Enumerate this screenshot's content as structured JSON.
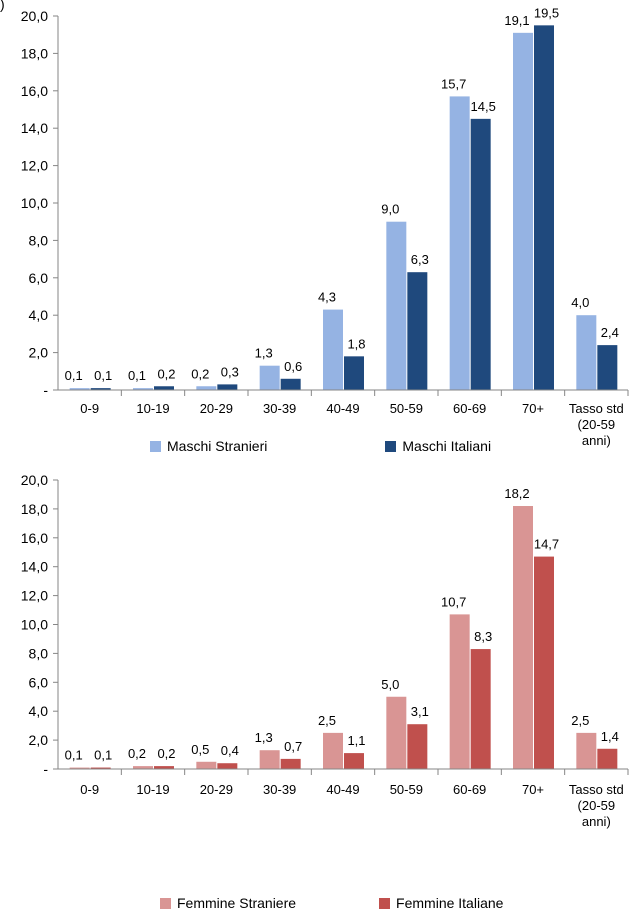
{
  "corner_mark": ")",
  "chart_data": [
    {
      "type": "bar",
      "categories": [
        "0-9",
        "10-19",
        "20-29",
        "30-39",
        "40-49",
        "50-59",
        "60-69",
        "70+",
        "Tasso std\n(20-59\nanni)"
      ],
      "series": [
        {
          "name": "Maschi Stranieri",
          "color": "#95b3e3",
          "values": [
            0.1,
            0.1,
            0.2,
            1.3,
            4.3,
            9.0,
            15.7,
            19.1,
            4.0
          ],
          "labels": [
            "0,1",
            "0,1",
            "0,2",
            "1,3",
            "4,3",
            "9,0",
            "15,7",
            "19,1",
            "4,0"
          ]
        },
        {
          "name": "Maschi Italiani",
          "color": "#1f497d",
          "values": [
            0.1,
            0.2,
            0.3,
            0.6,
            1.8,
            6.3,
            14.5,
            19.5,
            2.4
          ],
          "labels": [
            "0,1",
            "0,2",
            "0,3",
            "0,6",
            "1,8",
            "6,3",
            "14,5",
            "19,5",
            "2,4"
          ]
        }
      ],
      "ylim": [
        0,
        20
      ],
      "yticks": [
        "-",
        "2,0",
        "4,0",
        "6,0",
        "8,0",
        "10,0",
        "12,0",
        "14,0",
        "16,0",
        "18,0",
        "20,0"
      ],
      "grid": false,
      "legend": "bottom"
    },
    {
      "type": "bar",
      "categories": [
        "0-9",
        "10-19",
        "20-29",
        "30-39",
        "40-49",
        "50-59",
        "60-69",
        "70+",
        "Tasso std\n(20-59\nanni)"
      ],
      "series": [
        {
          "name": "Femmine Straniere",
          "color": "#d99594",
          "values": [
            0.1,
            0.2,
            0.5,
            1.3,
            2.5,
            5.0,
            10.7,
            18.2,
            2.5
          ],
          "labels": [
            "0,1",
            "0,2",
            "0,5",
            "1,3",
            "2,5",
            "5,0",
            "10,7",
            "18,2",
            "2,5"
          ]
        },
        {
          "name": "Femmine Italiane",
          "color": "#c0504d",
          "values": [
            0.1,
            0.2,
            0.4,
            0.7,
            1.1,
            3.1,
            8.3,
            14.7,
            1.4
          ],
          "labels": [
            "0,1",
            "0,2",
            "0,4",
            "0,7",
            "1,1",
            "3,1",
            "8,3",
            "14,7",
            "1,4"
          ]
        }
      ],
      "ylim": [
        0,
        20
      ],
      "yticks": [
        "-",
        "2,0",
        "4,0",
        "6,0",
        "8,0",
        "10,0",
        "12,0",
        "14,0",
        "16,0",
        "18,0",
        "20,0"
      ],
      "grid": false,
      "legend": "bottom"
    }
  ]
}
